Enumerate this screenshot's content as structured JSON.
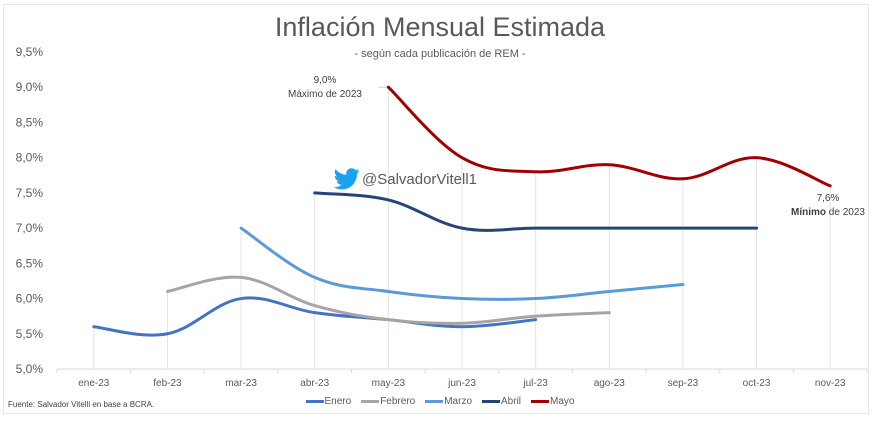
{
  "chart_data": {
    "type": "line",
    "title": "Inflación Mensual Estimada",
    "subtitle": "- según cada publicación de REM -",
    "xlabel": "",
    "ylabel": "",
    "categories": [
      "ene-23",
      "feb-23",
      "mar-23",
      "abr-23",
      "may-23",
      "jun-23",
      "jul-23",
      "ago-23",
      "sep-23",
      "oct-23",
      "nov-23"
    ],
    "ylim": [
      5.0,
      9.5
    ],
    "yticks": [
      "5,0%",
      "5,5%",
      "6,0%",
      "6,5%",
      "7,0%",
      "7,5%",
      "8,0%",
      "8,5%",
      "9,0%",
      "9,5%"
    ],
    "ytick_values": [
      5.0,
      5.5,
      6.0,
      6.5,
      7.0,
      7.5,
      8.0,
      8.5,
      9.0,
      9.5
    ],
    "grid": "vertical drop lines at data points",
    "legend_position": "bottom",
    "series": [
      {
        "name": "Enero",
        "color": "#4472C4",
        "values": [
          5.6,
          5.5,
          6.0,
          5.8,
          5.7,
          5.6,
          5.7,
          null,
          null,
          null,
          null
        ]
      },
      {
        "name": "Febrero",
        "color": "#A5A5A5",
        "values": [
          null,
          6.1,
          6.3,
          5.9,
          5.7,
          5.65,
          5.75,
          5.8,
          null,
          null,
          null
        ]
      },
      {
        "name": "Marzo",
        "color": "#5B9BD5",
        "values": [
          null,
          null,
          7.0,
          6.3,
          6.1,
          6.0,
          6.0,
          6.1,
          6.2,
          null,
          null
        ]
      },
      {
        "name": "Abril",
        "color": "#264478",
        "values": [
          null,
          null,
          null,
          7.5,
          7.4,
          7.0,
          7.0,
          7.0,
          7.0,
          7.0,
          null
        ]
      },
      {
        "name": "Mayo",
        "color": "#A00000",
        "values": [
          null,
          null,
          null,
          null,
          9.0,
          8.0,
          7.8,
          7.9,
          7.7,
          8.0,
          7.6
        ]
      }
    ],
    "annotations": [
      {
        "value_label": "9,0%",
        "text": "Máximo de 2023",
        "series": "Mayo",
        "category": "may-23"
      },
      {
        "value_label": "7,6%",
        "text_bold": "Mínimo",
        "text_rest": " de 2023",
        "series": "Mayo",
        "category": "nov-23"
      }
    ],
    "watermark": "@SalvadorVitell1",
    "source": "Fuente: Salvador Vitelli en base a BCRA."
  },
  "icons": {
    "twitter": "twitter-bird-icon"
  },
  "colors": {
    "twitter": "#1DA1F2",
    "axis_text": "#595959"
  }
}
